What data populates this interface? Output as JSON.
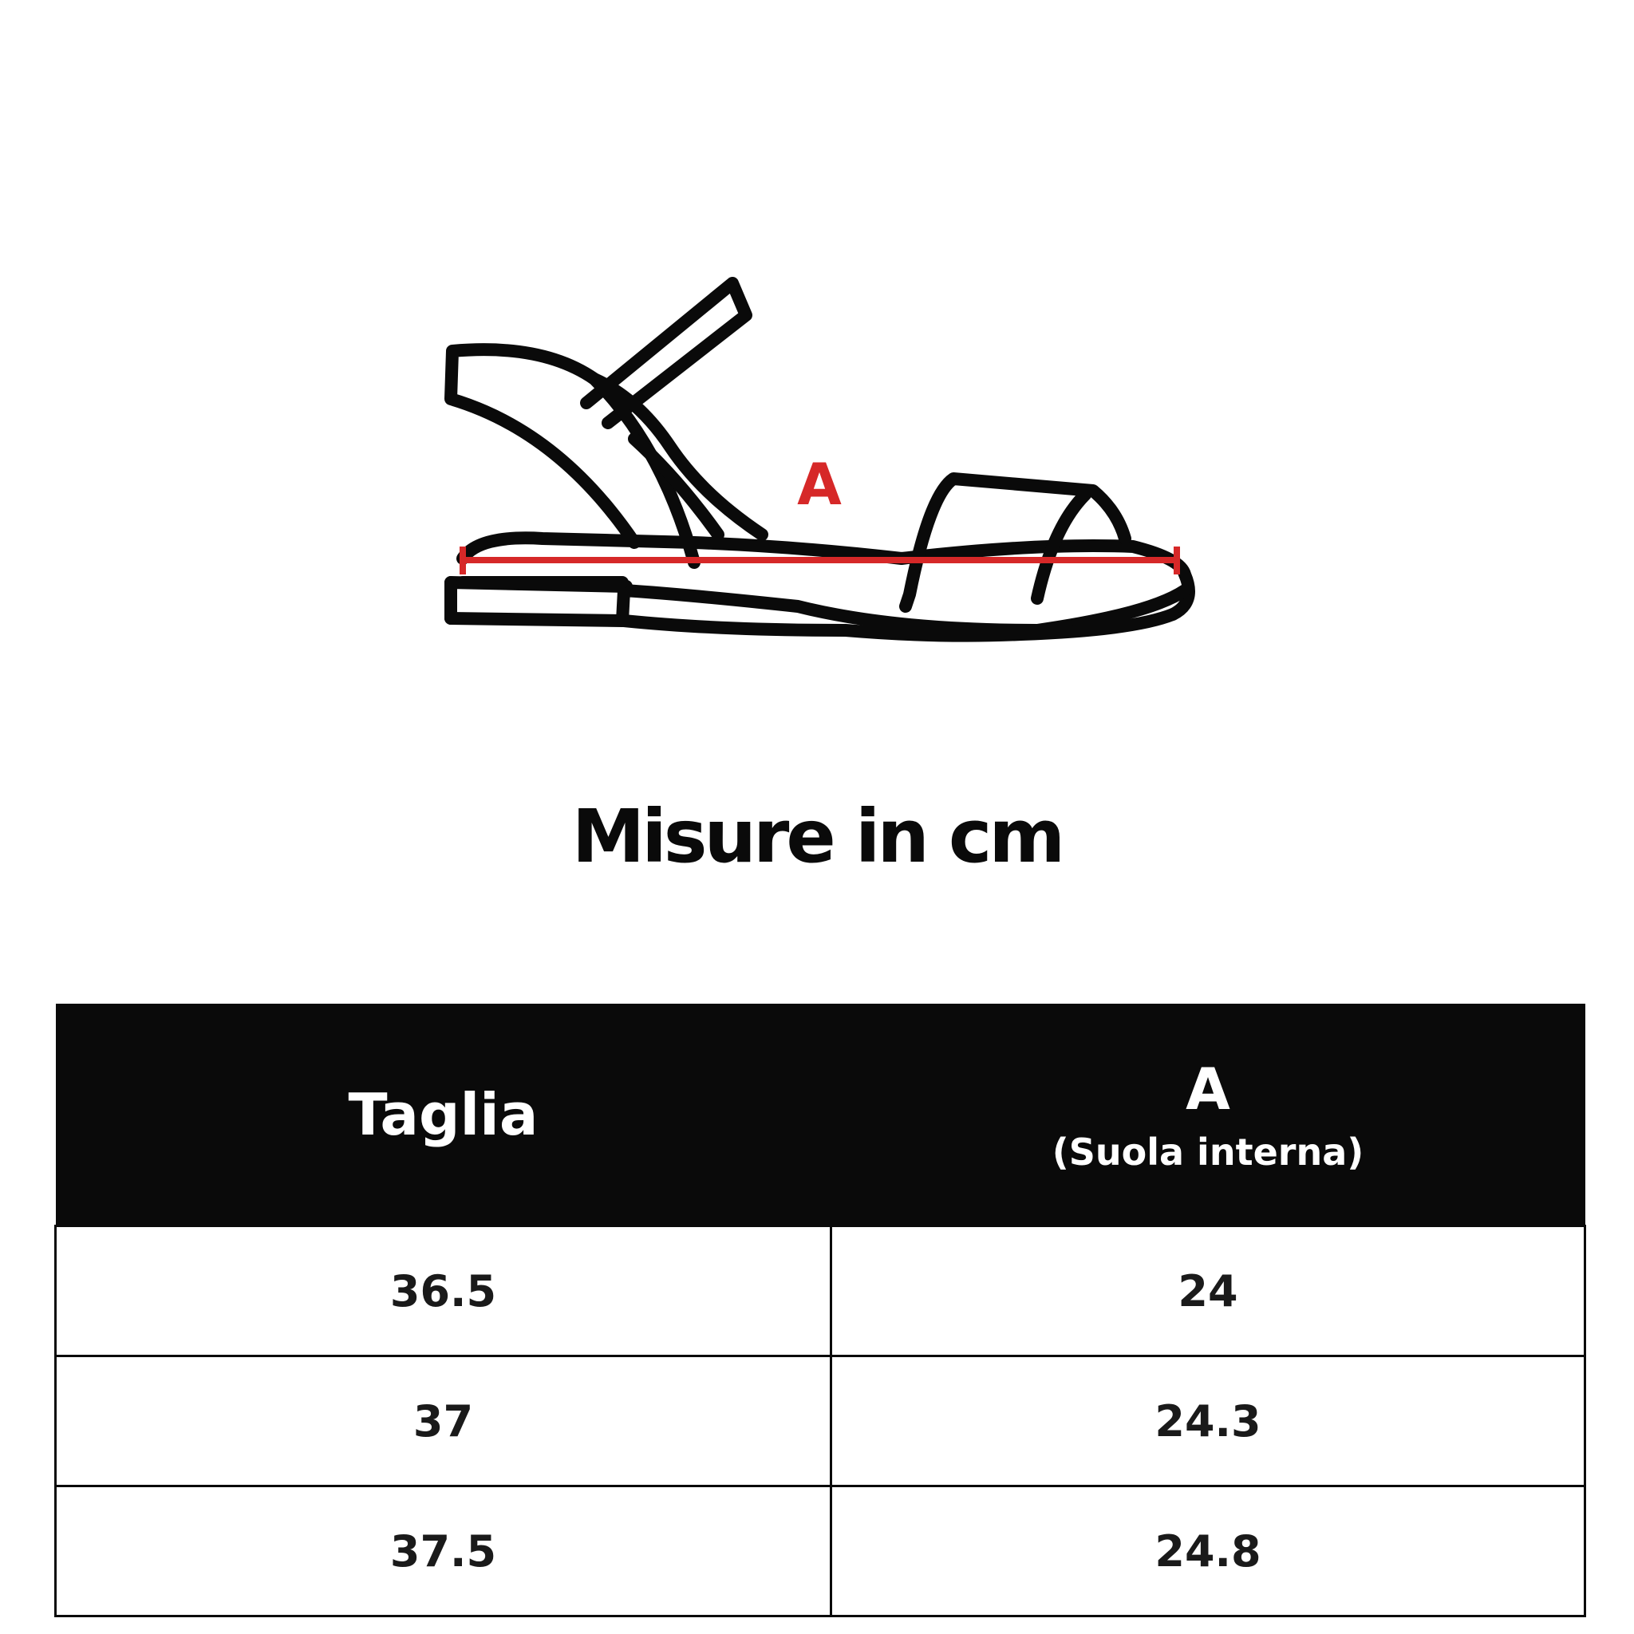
{
  "diagram": {
    "measure_label": "A",
    "measure_color": "#d62828",
    "outline_color": "#0a0a0a"
  },
  "title": "Misure in cm",
  "table": {
    "headers": {
      "size": "Taglia",
      "measure": "A",
      "measure_sub": "(Suola interna)"
    },
    "rows": [
      {
        "size": "36.5",
        "a": "24"
      },
      {
        "size": "37",
        "a": "24.3"
      },
      {
        "size": "37.5",
        "a": "24.8"
      }
    ]
  }
}
